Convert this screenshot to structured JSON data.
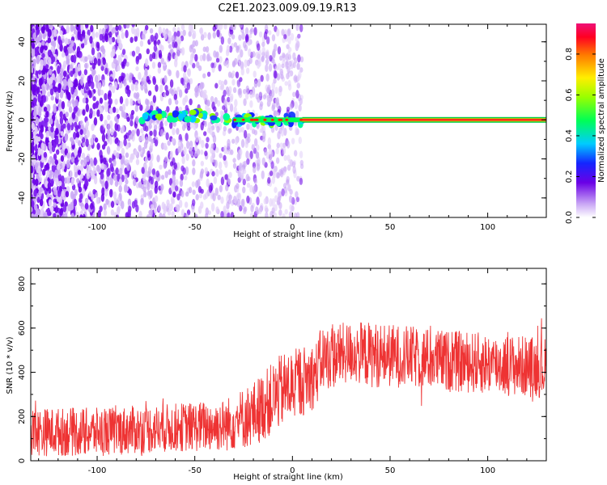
{
  "title": "C2E1.2023.009.09.19.R13",
  "chart_data": [
    {
      "type": "heatmap",
      "xlabel": "Height of straight line (km)",
      "ylabel": "Frequency (Hz)",
      "xlim": [
        -134,
        130
      ],
      "ylim": [
        -50,
        49
      ],
      "xticks": [
        -100,
        -50,
        0,
        50,
        100
      ],
      "yticks": [
        -40,
        -20,
        0,
        20,
        40
      ],
      "colorbar": {
        "label": "Normalized spectral amplitude",
        "range": [
          0.0,
          0.95
        ],
        "ticks": [
          0.0,
          0.2,
          0.4,
          0.6,
          0.8
        ]
      },
      "features": [
        {
          "name": "noise scatter",
          "x_range": [
            -134,
            5
          ],
          "amplitude": 0.15
        },
        {
          "name": "zero-frequency line",
          "x_range": [
            -77,
            130
          ],
          "freq": 0,
          "amplitude_start": 0.25,
          "amplitude_end": 0.95
        }
      ]
    },
    {
      "type": "line",
      "xlabel": "Height of straight line (km)",
      "ylabel": "SNR (10 * v/v)",
      "xlim": [
        -134,
        130
      ],
      "ylim": [
        0,
        870
      ],
      "xticks": [
        -100,
        -50,
        0,
        50,
        100
      ],
      "yticks": [
        0,
        200,
        400,
        600,
        800
      ],
      "color": "#ee3333",
      "envelope": {
        "x": [
          -134,
          -100,
          -60,
          -35,
          -20,
          -5,
          5,
          12,
          15,
          30,
          40,
          60,
          80,
          100,
          130
        ],
        "mean": [
          130,
          130,
          150,
          160,
          210,
          320,
          360,
          390,
          460,
          490,
          480,
          470,
          450,
          440,
          420
        ],
        "spread": [
          110,
          110,
          110,
          120,
          150,
          170,
          160,
          150,
          150,
          140,
          150,
          140,
          140,
          140,
          140
        ]
      }
    }
  ]
}
